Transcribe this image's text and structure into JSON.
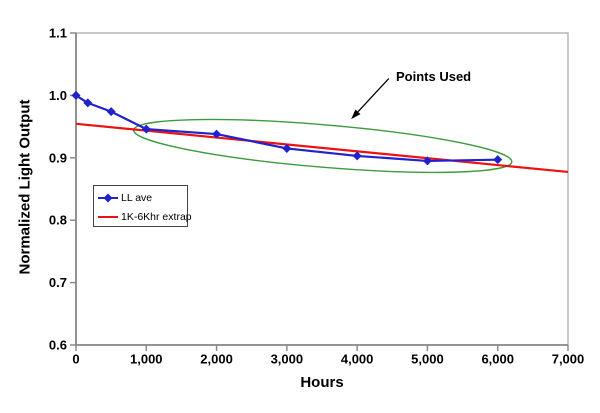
{
  "chart_data": {
    "type": "line",
    "title": "",
    "xlabel": "Hours",
    "ylabel": "Normalized Light Output",
    "xlim": [
      0,
      7000
    ],
    "ylim": [
      0.6,
      1.1
    ],
    "grid": false,
    "legend_position": "inside-middle-left",
    "x_ticks": {
      "values": [
        0,
        1000,
        2000,
        3000,
        4000,
        5000,
        6000,
        7000
      ],
      "labels": [
        "0",
        "1,000",
        "2,000",
        "3,000",
        "4,000",
        "5,000",
        "6,000",
        "7,000"
      ]
    },
    "y_ticks": {
      "values": [
        0.6,
        0.7,
        0.8,
        0.9,
        1.0,
        1.1
      ],
      "labels": [
        "0.6",
        "0.7",
        "0.8",
        "0.9",
        "1.0",
        "1.1"
      ]
    },
    "series": [
      {
        "name": "LL ave",
        "color": "#2121cd",
        "marker": "diamond",
        "x": [
          0,
          168,
          500,
          1000,
          2000,
          3000,
          4000,
          5000,
          6000
        ],
        "y": [
          1.0,
          0.988,
          0.974,
          0.946,
          0.938,
          0.915,
          0.903,
          0.895,
          0.897
        ]
      },
      {
        "name": "1K-6Khr extrap",
        "color": "#ee1111",
        "marker": "none",
        "x": [
          0,
          7000
        ],
        "y": [
          0.9545,
          0.8773
        ]
      }
    ],
    "annotation": {
      "label": "Points Used",
      "ellipse": {
        "cx": 3510,
        "cy": 0.919,
        "rx": 2700,
        "ry": 0.034,
        "rotation_deg": 4.8,
        "color": "#3c9b3c"
      },
      "arrow": {
        "x1": 4450,
        "y1": 1.027,
        "x2": 3915,
        "y2": 0.962,
        "color": "#000000"
      }
    },
    "axis_colors": {
      "border": "#b5b5b5",
      "axis": "#8a8a8a",
      "tick_label": "#000000"
    }
  }
}
